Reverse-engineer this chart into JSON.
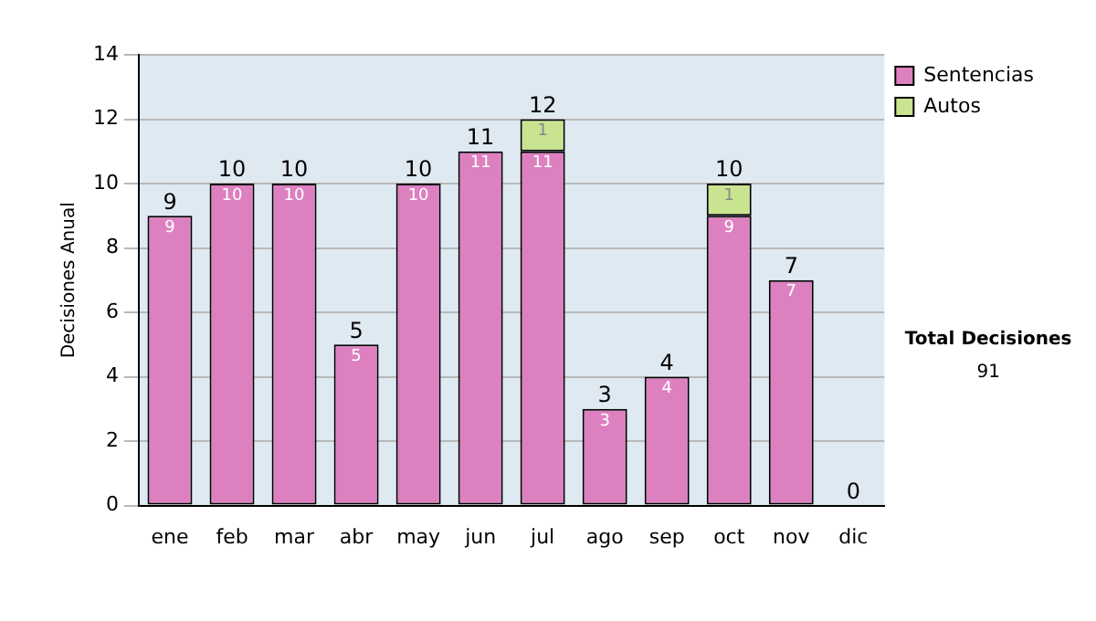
{
  "chart_data": {
    "type": "bar",
    "ylabel": "Decisiones Anual",
    "categories": [
      "ene",
      "feb",
      "mar",
      "abr",
      "may",
      "jun",
      "jul",
      "ago",
      "sep",
      "oct",
      "nov",
      "dic"
    ],
    "stacked": true,
    "series": [
      {
        "name": "Sentencias",
        "color": "#dd80c0",
        "values": [
          9,
          10,
          10,
          5,
          10,
          11,
          11,
          3,
          4,
          9,
          7,
          0
        ],
        "value_labels": [
          "9",
          "10",
          "10",
          "5",
          "10",
          "11",
          "11",
          "3",
          "4",
          "9",
          "7",
          null
        ]
      },
      {
        "name": "Autos",
        "color": "#c8e490",
        "values": [
          0,
          0,
          0,
          0,
          0,
          0,
          1,
          0,
          0,
          1,
          0,
          0
        ],
        "value_labels": [
          null,
          null,
          null,
          null,
          null,
          null,
          "1",
          null,
          null,
          "1",
          null,
          null
        ]
      }
    ],
    "totals": [
      "9",
      "10",
      "10",
      "5",
      "10",
      "11",
      "12",
      "3",
      "4",
      "10",
      "7",
      "0"
    ],
    "ylim": [
      0,
      14
    ],
    "yticks": [
      0,
      2,
      4,
      6,
      8,
      10,
      12,
      14
    ],
    "grid": "y",
    "legend": "right",
    "annotations": [
      "Total Decisiones",
      "91"
    ]
  }
}
